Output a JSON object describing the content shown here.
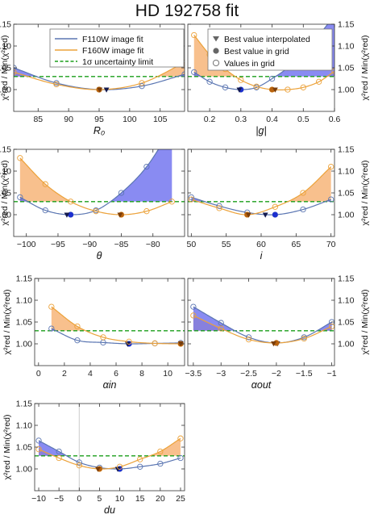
{
  "figure_title": "HD 192758 fit",
  "y_axis_label": "χ²red / Min(χ²red)",
  "colors": {
    "f110w": "#5b76b2",
    "f160w": "#eca23a",
    "f110w_fill": "#6f72ef",
    "f160w_fill": "#f6b274",
    "limit": "#1a9e1a",
    "pt_f110w": "#1c2fd0",
    "pt_f160w": "#b8620e"
  },
  "legend": {
    "lines": [
      "F110W image fit",
      "F160W image fit",
      "1σ uncertainty limit"
    ],
    "markers": [
      "Best value interpolated",
      "Best value in grid",
      "Values in grid"
    ]
  },
  "chart_data": [
    {
      "type": "line",
      "xlabel": "R₀",
      "xlim": [
        81,
        109
      ],
      "ylim": [
        0.95,
        1.15
      ],
      "xticks": [
        85,
        90,
        95,
        100,
        105
      ],
      "yticks": [
        1.0,
        1.05,
        1.1,
        1.15
      ],
      "limit": 1.03,
      "series": [
        {
          "name": "F110W image fit",
          "grid_x": [
            81,
            88,
            95,
            102,
            109
          ],
          "grid_y": [
            1.05,
            1.015,
            1.0,
            1.008,
            1.035
          ],
          "best_grid": 95,
          "best_interp": [
            96.2,
            0.999
          ]
        },
        {
          "name": "F160W image fit",
          "grid_x": [
            81,
            88,
            95,
            102,
            109
          ],
          "grid_y": [
            1.04,
            1.012,
            1.0,
            1.015,
            1.062
          ],
          "best_grid": 95,
          "best_interp": [
            95.1,
            0.999
          ]
        }
      ]
    },
    {
      "type": "line",
      "xlabel": "|g|",
      "xlim": [
        0.13,
        0.6
      ],
      "ylim": [
        0.95,
        1.15
      ],
      "xticks": [
        0.2,
        0.3,
        0.4,
        0.5,
        0.6
      ],
      "yticks": [
        1.0,
        1.05,
        1.1,
        1.15
      ],
      "limit": 1.03,
      "series": [
        {
          "name": "F110W image fit",
          "grid_x": [
            0.15,
            0.2,
            0.25,
            0.3,
            0.35,
            0.4,
            0.45,
            0.5,
            0.55,
            0.6
          ],
          "grid_y": [
            1.04,
            1.018,
            1.005,
            1.0,
            1.005,
            1.025,
            1.05,
            1.085,
            1.125,
            1.17
          ],
          "best_grid": 0.3,
          "best_interp": [
            0.295,
            0.999
          ]
        },
        {
          "name": "F160W image fit",
          "grid_x": [
            0.15,
            0.2,
            0.25,
            0.3,
            0.35,
            0.4,
            0.45,
            0.5,
            0.55,
            0.6
          ],
          "grid_y": [
            1.125,
            1.08,
            1.047,
            1.022,
            1.007,
            1.0,
            1.0,
            1.005,
            1.018,
            1.042
          ],
          "best_grid": 0.4,
          "best_interp": [
            0.41,
            0.999
          ]
        }
      ]
    },
    {
      "type": "line",
      "xlabel": "θ",
      "xlim": [
        -102,
        -75
      ],
      "ylim": [
        0.95,
        1.15
      ],
      "xticks": [
        -100,
        -95,
        -90,
        -85,
        -80
      ],
      "yticks": [
        1.0,
        1.05,
        1.1,
        1.15
      ],
      "limit": 1.03,
      "series": [
        {
          "name": "F110W image fit",
          "grid_x": [
            -101,
            -97,
            -93,
            -89,
            -85,
            -81,
            -77
          ],
          "grid_y": [
            1.04,
            1.01,
            1.0,
            1.01,
            1.05,
            1.11,
            1.2
          ],
          "best_grid": -93,
          "best_interp": [
            -93.6,
            0.999
          ]
        },
        {
          "name": "F160W image fit",
          "grid_x": [
            -101,
            -97,
            -93,
            -89,
            -85,
            -81,
            -77
          ],
          "grid_y": [
            1.13,
            1.07,
            1.03,
            1.008,
            1.0,
            1.008,
            1.03
          ],
          "best_grid": -85,
          "best_interp": [
            -85.2,
            0.999
          ]
        }
      ]
    },
    {
      "type": "line",
      "xlabel": "i",
      "xlim": [
        49.5,
        70.5
      ],
      "ylim": [
        0.95,
        1.15
      ],
      "xticks": [
        50,
        55,
        60,
        65,
        70
      ],
      "yticks": [
        1.0,
        1.05,
        1.1,
        1.15
      ],
      "limit": 1.03,
      "series": [
        {
          "name": "F110W image fit",
          "grid_x": [
            50,
            54,
            58,
            62,
            66,
            70
          ],
          "grid_y": [
            1.04,
            1.02,
            1.005,
            1.0,
            1.012,
            1.035
          ],
          "best_grid": 62,
          "best_interp": [
            60.6,
            0.999
          ]
        },
        {
          "name": "F160W image fit",
          "grid_x": [
            50,
            54,
            58,
            62,
            66,
            70
          ],
          "grid_y": [
            1.035,
            1.015,
            1.0,
            1.018,
            1.05,
            1.11
          ],
          "best_grid": 58,
          "best_interp": [
            58.2,
            0.999
          ]
        }
      ]
    },
    {
      "type": "line",
      "xlabel": "αin",
      "xlim": [
        -0.3,
        11.3
      ],
      "ylim": [
        0.95,
        1.15
      ],
      "xticks": [
        0,
        2,
        4,
        6,
        8,
        10
      ],
      "yticks": [
        1.0,
        1.05,
        1.1,
        1.15
      ],
      "limit": 1.03,
      "series": [
        {
          "name": "F110W image fit",
          "grid_x": [
            1,
            3,
            5,
            7,
            9,
            11
          ],
          "grid_y": [
            1.035,
            1.008,
            1.003,
            1.0,
            1.001,
            1.002
          ],
          "best_grid": 7,
          "best_interp": [
            6.9,
            0.999
          ]
        },
        {
          "name": "F160W image fit",
          "grid_x": [
            1,
            3,
            5,
            7,
            9,
            11
          ],
          "grid_y": [
            1.085,
            1.04,
            1.015,
            1.005,
            1.001,
            1.0
          ],
          "best_grid": 11,
          "best_interp": [
            11.0,
            1.0
          ]
        }
      ]
    },
    {
      "type": "line",
      "xlabel": "αout",
      "xlim": [
        -3.6,
        -0.95
      ],
      "ylim": [
        0.95,
        1.15
      ],
      "xticks": [
        -3.5,
        -3.0,
        -2.5,
        -2.0,
        -1.5,
        -1.0
      ],
      "yticks": [
        1.0,
        1.05,
        1.1,
        1.15
      ],
      "limit": 1.03,
      "series": [
        {
          "name": "F110W image fit",
          "grid_x": [
            -3.5,
            -3.0,
            -2.5,
            -2.0,
            -1.5,
            -1.0
          ],
          "grid_y": [
            1.085,
            1.048,
            1.015,
            1.002,
            1.015,
            1.05
          ],
          "best_grid": -2.0,
          "best_interp": [
            -1.98,
            1.0
          ]
        },
        {
          "name": "F160W image fit",
          "grid_x": [
            -3.5,
            -3.0,
            -2.5,
            -2.0,
            -1.5,
            -1.0
          ],
          "grid_y": [
            1.065,
            1.035,
            1.01,
            1.002,
            1.012,
            1.04
          ],
          "best_grid": -2.0,
          "best_interp": [
            -2.05,
            1.0
          ]
        }
      ]
    },
    {
      "type": "line",
      "xlabel": "du",
      "xlim": [
        -11,
        26
      ],
      "ylim": [
        0.95,
        1.15
      ],
      "xticks": [
        -10,
        -5,
        0,
        5,
        10,
        15,
        20,
        25
      ],
      "yticks": [
        1.0,
        1.05,
        1.1,
        1.15
      ],
      "limit": 1.03,
      "series": [
        {
          "name": "F110W image fit",
          "grid_x": [
            -10,
            -5,
            0,
            5,
            10,
            15,
            20,
            25
          ],
          "grid_y": [
            1.065,
            1.04,
            1.015,
            1.003,
            1.0,
            1.005,
            1.012,
            1.025
          ],
          "best_grid": 10,
          "best_interp": [
            9.5,
            0.999
          ]
        },
        {
          "name": "F160W image fit",
          "grid_x": [
            -10,
            -5,
            0,
            5,
            10,
            15,
            20,
            25
          ],
          "grid_y": [
            1.045,
            1.025,
            1.008,
            1.0,
            1.005,
            1.022,
            1.04,
            1.07
          ],
          "best_grid": 5,
          "best_interp": [
            4.6,
            0.999
          ]
        }
      ]
    }
  ]
}
